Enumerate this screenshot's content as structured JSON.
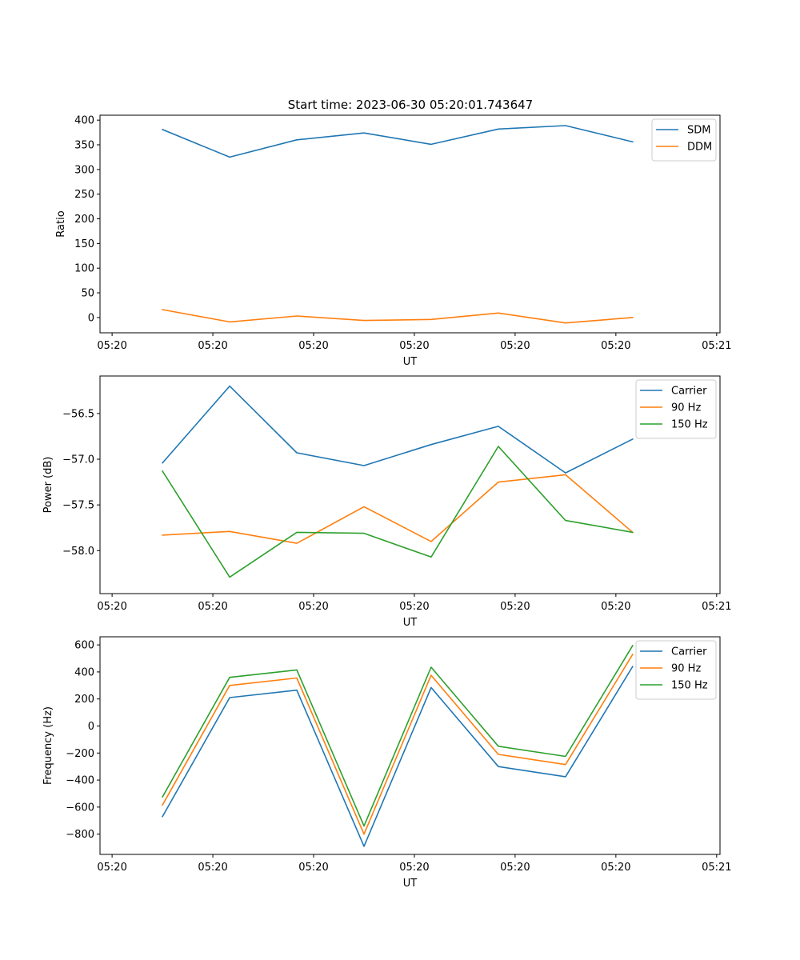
{
  "figure": {
    "title": "Start time: 2023-06-30 05:20:01.743647"
  },
  "chart_data": [
    {
      "type": "line",
      "xlabel": "UT",
      "ylabel": "Ratio",
      "x_tick_labels": [
        "05:20",
        "05:20",
        "05:20",
        "05:20",
        "05:20",
        "05:20",
        "05:21"
      ],
      "y_ticks": [
        0,
        50,
        100,
        150,
        200,
        250,
        300,
        350,
        400
      ],
      "y_tick_labels": [
        "0",
        "50",
        "100",
        "150",
        "200",
        "250",
        "300",
        "350",
        "400"
      ],
      "ylim": [
        -31,
        410
      ],
      "xlim": [
        -0.18,
        9.05
      ],
      "grid": false,
      "legend": "top-right",
      "x": [
        0.75,
        1.75,
        2.75,
        3.75,
        4.75,
        5.75,
        6.75,
        7.75
      ],
      "series": [
        {
          "name": "SDM",
          "color": "#1f77b4",
          "values": [
            381,
            325,
            360,
            374,
            351,
            382,
            389,
            356
          ]
        },
        {
          "name": "DDM",
          "color": "#ff7f0e",
          "values": [
            16,
            -9,
            3,
            -6,
            -4,
            9,
            -11,
            0
          ]
        }
      ]
    },
    {
      "type": "line",
      "xlabel": "UT",
      "ylabel": "Power (dB)",
      "x_tick_labels": [
        "05:20",
        "05:20",
        "05:20",
        "05:20",
        "05:20",
        "05:20",
        "05:21"
      ],
      "y_ticks": [
        -58.0,
        -57.5,
        -57.0,
        -56.5
      ],
      "y_tick_labels": [
        "−58.0",
        "−57.5",
        "−57.0",
        "−56.5"
      ],
      "ylim": [
        -58.47,
        -56.09
      ],
      "xlim": [
        -0.18,
        9.05
      ],
      "grid": false,
      "legend": "top-right",
      "x": [
        0.75,
        1.75,
        2.75,
        3.75,
        4.75,
        5.75,
        6.75,
        7.75
      ],
      "series": [
        {
          "name": "Carrier",
          "color": "#1f77b4",
          "values": [
            -57.04,
            -56.2,
            -56.93,
            -57.07,
            -56.84,
            -56.64,
            -57.15,
            -56.78
          ]
        },
        {
          "name": "90 Hz",
          "color": "#ff7f0e",
          "values": [
            -57.83,
            -57.79,
            -57.92,
            -57.52,
            -57.9,
            -57.25,
            -57.17,
            -57.8
          ]
        },
        {
          "name": "150 Hz",
          "color": "#2ca02c",
          "values": [
            -57.13,
            -58.29,
            -57.8,
            -57.81,
            -58.07,
            -56.86,
            -57.67,
            -57.8
          ]
        }
      ]
    },
    {
      "type": "line",
      "xlabel": "UT",
      "ylabel": "Frequency (Hz)",
      "x_tick_labels": [
        "05:20",
        "05:20",
        "05:20",
        "05:20",
        "05:20",
        "05:20",
        "05:21"
      ],
      "y_ticks": [
        -800,
        -600,
        -400,
        -200,
        0,
        200,
        400,
        600
      ],
      "y_tick_labels": [
        "−800",
        "−600",
        "−400",
        "−200",
        "0",
        "200",
        "400",
        "600"
      ],
      "ylim": [
        -950,
        660
      ],
      "xlim": [
        -0.18,
        9.05
      ],
      "grid": false,
      "legend": "top-right",
      "x": [
        0.75,
        1.75,
        2.75,
        3.75,
        4.75,
        5.75,
        6.75,
        7.75
      ],
      "series": [
        {
          "name": "Carrier",
          "color": "#1f77b4",
          "values": [
            -670,
            210,
            265,
            -890,
            285,
            -300,
            -375,
            440
          ]
        },
        {
          "name": "90 Hz",
          "color": "#ff7f0e",
          "values": [
            -585,
            300,
            355,
            -800,
            375,
            -210,
            -285,
            530
          ]
        },
        {
          "name": "150 Hz",
          "color": "#2ca02c",
          "values": [
            -525,
            360,
            415,
            -740,
            435,
            -150,
            -225,
            595
          ]
        }
      ]
    }
  ]
}
